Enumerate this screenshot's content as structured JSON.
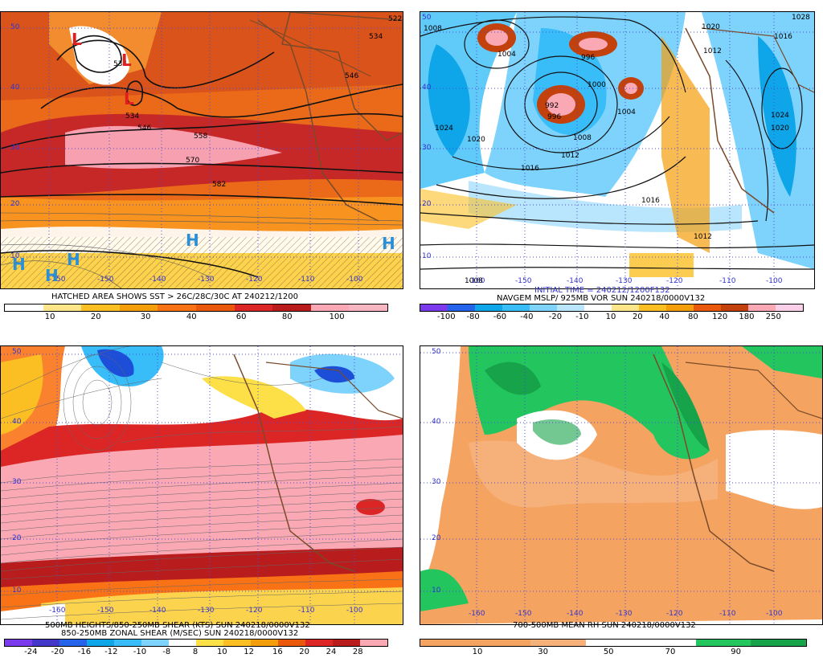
{
  "panels": {
    "tl": {
      "caption": "HATCHED AREA SHOWS SST > 26C/28C/30C AT 240212/1200",
      "cbar_colors": [
        "#ffffff",
        "#fde68a",
        "#fbbf24",
        "#f59e0b",
        "#f97316",
        "#ea580c",
        "#dc2626",
        "#b91c1c",
        "#f9a8b4",
        "#f7b6c2"
      ],
      "cbar_ticks": [
        "10",
        "20",
        "30",
        "40",
        "60",
        "80",
        "100"
      ],
      "lat_labels": [
        "50",
        "40",
        "30",
        "20",
        "10"
      ],
      "lon_labels": [
        "-150",
        "-150",
        "-140",
        "-130",
        "-120",
        "-110",
        "-100"
      ],
      "contour_labels": [
        "534",
        "534",
        "546",
        "558",
        "570",
        "582",
        "522",
        "534",
        "546"
      ],
      "lows": [
        "L",
        "L",
        "L"
      ],
      "highs": [
        "H",
        "H",
        "H",
        "H",
        "H"
      ]
    },
    "tr": {
      "caption_line1": "INITIAL TIME = 240212/1200F132",
      "caption_line2": "NAVGEM MSLP/ 925MB VOR SUN 240218/0000V132",
      "cbar_colors": [
        "#7c3aed",
        "#2563eb",
        "#0ea5e9",
        "#38bdf8",
        "#7dd3fc",
        "#bae6fd",
        "#ffffff",
        "#fde68a",
        "#fbbf24",
        "#f59e0b",
        "#ea580c",
        "#c2410c",
        "#f9a8b4",
        "#fbcfe8"
      ],
      "cbar_ticks": [
        "-100",
        "-80",
        "-60",
        "-40",
        "-20",
        "-10",
        "10",
        "20",
        "40",
        "80",
        "120",
        "180",
        "250"
      ],
      "lat_labels": [
        "50",
        "40",
        "30",
        "20",
        "10"
      ],
      "lon_labels": [
        "-160",
        "-150",
        "-140",
        "-130",
        "-120",
        "-110",
        "-100"
      ],
      "isobar_labels": [
        "1008",
        "1004",
        "996",
        "1000",
        "992",
        "996",
        "1004",
        "1008",
        "1012",
        "1016",
        "1016",
        "1012",
        "1008",
        "1020",
        "1024",
        "1020",
        "1012",
        "1024",
        "1028",
        "1016",
        "1020"
      ]
    },
    "bl": {
      "caption_line1": "500MB HEIGHTS/850-250MB SHEAR (KTS) SUN 240218/0000V132",
      "caption_line2": "850-250MB ZONAL SHEAR (M/SEC) SUN 240218/0000V132",
      "cbar_colors": [
        "#7c3aed",
        "#4338ca",
        "#2563eb",
        "#0ea5e9",
        "#38bdf8",
        "#7dd3fc",
        "#ffffff",
        "#fde047",
        "#fbbf24",
        "#f59e0b",
        "#ea580c",
        "#dc2626",
        "#b91c1c",
        "#f9a8b4"
      ],
      "cbar_ticks": [
        "-24",
        "-20",
        "-16",
        "-12",
        "-10",
        "-8",
        "8",
        "10",
        "12",
        "16",
        "20",
        "24",
        "28"
      ],
      "lat_labels": [
        "50",
        "40",
        "30",
        "20",
        "10"
      ],
      "lon_labels": [
        "-160",
        "-150",
        "-140",
        "-130",
        "-120",
        "-110",
        "-100"
      ]
    },
    "br": {
      "caption": "700-500MB MEAN RH SUN 240218/0000V132",
      "cbar_colors": [
        "#f4a460",
        "#f4a460",
        "#f6b07a",
        "#ffffff",
        "#ffffff",
        "#22c55e",
        "#16a34a"
      ],
      "cbar_ticks": [
        "10",
        "30",
        "50",
        "70",
        "90"
      ],
      "lat_labels": [
        "50",
        "40",
        "30",
        "20",
        "10"
      ],
      "lon_labels": [
        "-160",
        "-150",
        "-140",
        "-130",
        "-120",
        "-110",
        "-100"
      ]
    }
  }
}
